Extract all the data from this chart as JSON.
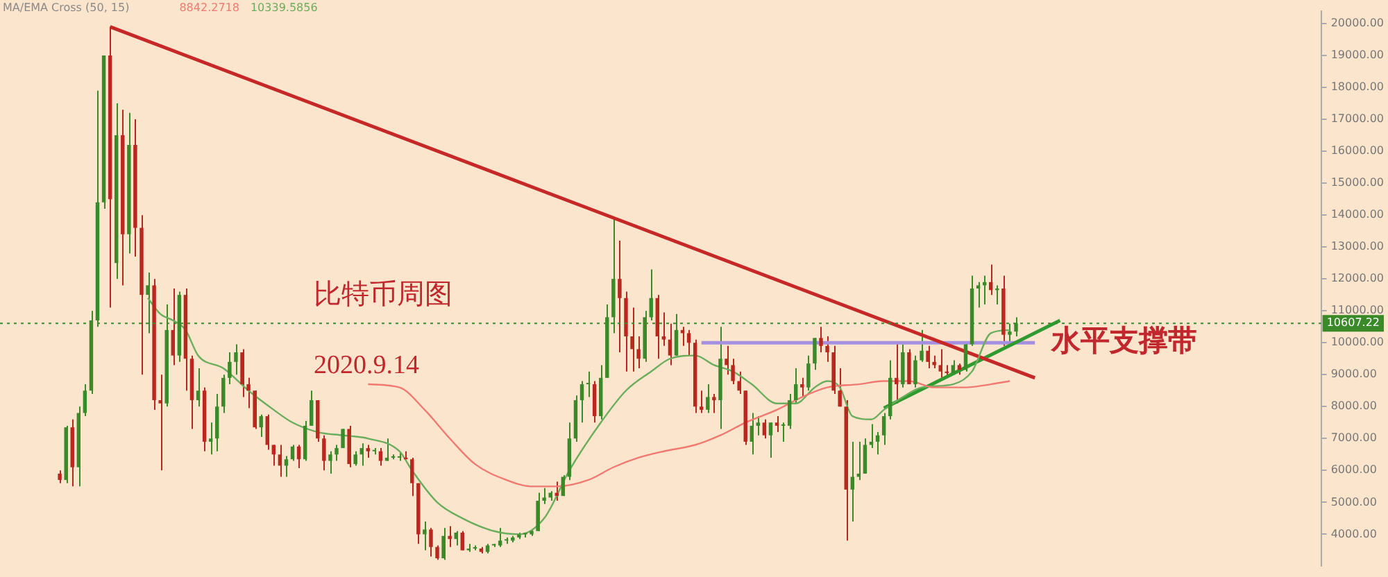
{
  "chart_data": {
    "type": "candlestick",
    "title": "比特币周图",
    "subtitle": "2020.9.14",
    "annotations": [
      "MA/EMA Cross (50, 15)",
      "8842.2718",
      "10339.5856"
    ],
    "categories": [
      null,
      null,
      null,
      null,
      null,
      null,
      null,
      null,
      null,
      null,
      null,
      null,
      null,
      null,
      null,
      null,
      null,
      null,
      null,
      null,
      null,
      null,
      null,
      null,
      null,
      null,
      null,
      null,
      null,
      null,
      null,
      null,
      null,
      null,
      null,
      null,
      null,
      null,
      null,
      null,
      null,
      null,
      null,
      null,
      null,
      null,
      null,
      null,
      null,
      null,
      null,
      null,
      null,
      null,
      null,
      null,
      null,
      null,
      null,
      null,
      null,
      null,
      null,
      null,
      null,
      null,
      null,
      null,
      null,
      null,
      null,
      null,
      null,
      null,
      null,
      null,
      null,
      null,
      null,
      null,
      null,
      null,
      null,
      null,
      null,
      null,
      null,
      null,
      null,
      null,
      null,
      null,
      null,
      null,
      null,
      null,
      null,
      null,
      null,
      null,
      null,
      null,
      null,
      null,
      null,
      null,
      null,
      null,
      null,
      null,
      null,
      null,
      null,
      null,
      null,
      null,
      null,
      null,
      null,
      null,
      null,
      null,
      null,
      null,
      null,
      null,
      null,
      null,
      null,
      null,
      null,
      null,
      null,
      null,
      null,
      null,
      null,
      null,
      null,
      null,
      null,
      null,
      null,
      null,
      null,
      null,
      null,
      null,
      null,
      null,
      null,
      null,
      null,
      null,
      null,
      null,
      null,
      null,
      null,
      null,
      null,
      null,
      null,
      null,
      null,
      null,
      null,
      null,
      null,
      null,
      null,
      null,
      null,
      null,
      null,
      null,
      null,
      null,
      null,
      null,
      null,
      null,
      null,
      null,
      null,
      null,
      null,
      null,
      null,
      null,
      null,
      null,
      null,
      null,
      null,
      null,
      null,
      null,
      null,
      null,
      null,
      null,
      null,
      null,
      null,
      null,
      null,
      null,
      null,
      null
    ],
    "ohlc": [
      null,
      null,
      null,
      null,
      null,
      null,
      null,
      null,
      null,
      [
        5900,
        6000,
        5600,
        5700
      ],
      [
        5700,
        7400,
        5600,
        7350
      ],
      [
        7350,
        7600,
        5500,
        6100
      ],
      [
        6100,
        8000,
        5500,
        7800
      ],
      [
        7800,
        8700,
        7700,
        8500
      ],
      [
        8500,
        11000,
        8400,
        10700
      ],
      [
        10700,
        17900,
        10500,
        14400
      ],
      [
        14400,
        19000,
        14200,
        19000
      ],
      [
        19000,
        19900,
        11100,
        14500
      ],
      [
        12500,
        17500,
        12000,
        16500
      ],
      [
        16500,
        17300,
        11800,
        13400
      ],
      [
        13400,
        17200,
        12800,
        16200
      ],
      [
        16200,
        17000,
        12700,
        13600
      ],
      [
        13600,
        14000,
        9000,
        11500
      ],
      [
        11500,
        12200,
        10300,
        11800
      ],
      [
        11800,
        12000,
        7900,
        8200
      ],
      [
        8200,
        9000,
        6000,
        8100
      ],
      [
        8100,
        11200,
        8000,
        10400
      ],
      [
        10400,
        11700,
        9300,
        9600
      ],
      [
        9600,
        11600,
        9400,
        11500
      ],
      [
        11500,
        11700,
        8500,
        9500
      ],
      [
        9500,
        9600,
        7300,
        8200
      ],
      [
        8200,
        9200,
        8000,
        8500
      ],
      [
        8500,
        8600,
        6600,
        6900
      ],
      [
        6900,
        7500,
        6500,
        7000
      ],
      [
        7000,
        8400,
        6600,
        8000
      ],
      [
        8000,
        9000,
        7800,
        8900
      ],
      [
        8900,
        9700,
        8700,
        9400
      ],
      [
        9400,
        9950,
        9000,
        9700
      ],
      [
        9700,
        9800,
        8300,
        8700
      ],
      [
        8700,
        8900,
        7950,
        8500
      ],
      [
        8500,
        8500,
        7300,
        7350
      ],
      [
        7350,
        7750,
        7050,
        7700
      ],
      [
        7700,
        7750,
        6650,
        6800
      ],
      [
        6800,
        6800,
        6150,
        6500
      ],
      [
        6500,
        6800,
        5800,
        6150
      ],
      [
        6150,
        6450,
        5800,
        6350
      ],
      [
        6350,
        6800,
        6300,
        6750
      ],
      [
        6750,
        6800,
        6070,
        6350
      ],
      [
        6350,
        7550,
        6300,
        7400
      ],
      [
        7400,
        8500,
        7400,
        8200
      ],
      [
        8200,
        8200,
        6900,
        7000
      ],
      [
        7000,
        7100,
        6000,
        6300
      ],
      [
        6300,
        6600,
        5900,
        6500
      ],
      [
        6500,
        6800,
        6300,
        6700
      ],
      [
        6700,
        7300,
        6700,
        7300
      ],
      [
        7300,
        7400,
        6100,
        6200
      ],
      [
        6200,
        6600,
        6150,
        6500
      ],
      [
        6500,
        6850,
        6150,
        6700
      ],
      [
        6700,
        6800,
        6400,
        6600
      ],
      [
        6600,
        6700,
        6500,
        6600
      ],
      [
        6600,
        6700,
        6150,
        6300
      ],
      [
        6300,
        7000,
        6300,
        6400
      ],
      [
        6400,
        6500,
        6350,
        6400
      ],
      [
        6400,
        6550,
        6300,
        6400
      ],
      [
        6400,
        6600,
        6350,
        6350
      ],
      [
        6350,
        6400,
        5200,
        5600
      ],
      [
        5600,
        5600,
        3700,
        4000
      ],
      [
        4000,
        4400,
        3500,
        4150
      ],
      [
        4150,
        4200,
        3300,
        3600
      ],
      [
        3600,
        3650,
        3200,
        3250
      ],
      [
        3250,
        4200,
        3200,
        3950
      ],
      [
        3950,
        4250,
        3600,
        3850
      ],
      [
        3850,
        4100,
        3650,
        4050
      ],
      [
        4050,
        4100,
        3500,
        3500
      ],
      [
        3500,
        3700,
        3450,
        3550
      ],
      [
        3550,
        3650,
        3500,
        3550
      ],
      [
        3550,
        3600,
        3400,
        3450
      ],
      [
        3450,
        3700,
        3400,
        3650
      ],
      [
        3650,
        3700,
        3600,
        3650
      ],
      [
        3650,
        4200,
        3600,
        3800
      ],
      [
        3800,
        3900,
        3700,
        3800
      ],
      [
        3800,
        3950,
        3750,
        3900
      ],
      [
        3900,
        4050,
        3850,
        4000
      ],
      [
        4000,
        4050,
        3900,
        4000
      ],
      [
        4000,
        4150,
        3950,
        4100
      ],
      [
        4100,
        5300,
        4100,
        5050
      ],
      [
        5050,
        5450,
        4950,
        5150
      ],
      [
        5150,
        5350,
        5050,
        5300
      ],
      [
        5300,
        5650,
        5050,
        5200
      ],
      [
        5200,
        5850,
        5200,
        5800
      ],
      [
        5800,
        7500,
        5700,
        7000
      ],
      [
        7000,
        8350,
        6900,
        8200
      ],
      [
        8200,
        8800,
        7500,
        8700
      ],
      [
        8700,
        9100,
        8300,
        8700
      ],
      [
        8700,
        8800,
        7500,
        7700
      ],
      [
        7700,
        9300,
        7600,
        8900
      ],
      [
        8900,
        11200,
        8900,
        10800
      ],
      [
        10800,
        13900,
        10300,
        12000
      ],
      [
        12000,
        13200,
        9700,
        11400
      ],
      [
        11400,
        11600,
        9100,
        10200
      ],
      [
        10200,
        11100,
        9100,
        9800
      ],
      [
        9800,
        10200,
        9200,
        9500
      ],
      [
        9500,
        11000,
        9400,
        10800
      ],
      [
        10800,
        12300,
        10700,
        11400
      ],
      [
        11400,
        11500,
        9500,
        10200
      ],
      [
        10200,
        10950,
        9900,
        10100
      ],
      [
        10100,
        10600,
        9300,
        9600
      ],
      [
        9600,
        10900,
        9600,
        10400
      ],
      [
        10400,
        10500,
        9900,
        10300
      ],
      [
        10300,
        10400,
        9600,
        10000
      ],
      [
        10000,
        10100,
        7800,
        8000
      ],
      [
        8000,
        8500,
        7800,
        7900
      ],
      [
        7900,
        8700,
        7800,
        8300
      ],
      [
        8300,
        8400,
        7800,
        8200
      ],
      [
        8200,
        10500,
        7300,
        9500
      ],
      [
        9500,
        9900,
        9000,
        9300
      ],
      [
        9300,
        9500,
        8700,
        8800
      ],
      [
        8800,
        9100,
        8400,
        8500
      ],
      [
        8500,
        8500,
        6800,
        6900
      ],
      [
        6900,
        7800,
        6500,
        7400
      ],
      [
        7400,
        7700,
        7100,
        7500
      ],
      [
        7500,
        7600,
        7000,
        7100
      ],
      [
        7100,
        7500,
        6400,
        7500
      ],
      [
        7500,
        7700,
        7200,
        7400
      ],
      [
        7400,
        7500,
        6900,
        7400
      ],
      [
        7400,
        8400,
        7300,
        8200
      ],
      [
        8200,
        9200,
        8100,
        8700
      ],
      [
        8700,
        8900,
        8300,
        8600
      ],
      [
        8600,
        9600,
        8500,
        9350
      ],
      [
        9350,
        10150,
        9150,
        10150
      ],
      [
        10150,
        10500,
        9700,
        9900
      ],
      [
        9900,
        10200,
        9400,
        9700
      ],
      [
        9700,
        9900,
        8400,
        8500
      ],
      [
        8500,
        9200,
        8000,
        8000
      ],
      [
        8000,
        8200,
        3800,
        5400
      ],
      [
        5400,
        6900,
        4400,
        5800
      ],
      [
        5800,
        6900,
        5700,
        5900
      ],
      [
        5900,
        7000,
        5900,
        6800
      ],
      [
        6800,
        7450,
        6700,
        6900
      ],
      [
        6900,
        7200,
        6500,
        7100
      ],
      [
        7100,
        7800,
        6800,
        7700
      ],
      [
        7700,
        9450,
        7600,
        8900
      ],
      [
        8900,
        10000,
        8100,
        8700
      ],
      [
        8700,
        9950,
        8600,
        9700
      ],
      [
        9700,
        9800,
        8700,
        8700
      ],
      [
        8700,
        9600,
        8600,
        9450
      ],
      [
        9450,
        10400,
        9400,
        9750
      ],
      [
        9750,
        9900,
        9200,
        9400
      ],
      [
        9400,
        9600,
        9200,
        9300
      ],
      [
        9300,
        9800,
        8900,
        9100
      ],
      [
        9100,
        9300,
        8900,
        9050
      ],
      [
        9050,
        9450,
        9000,
        9300
      ],
      [
        9300,
        9350,
        9000,
        9150
      ],
      [
        9150,
        10000,
        9100,
        9950
      ],
      [
        9950,
        12100,
        9900,
        11700
      ],
      [
        11700,
        11900,
        11100,
        11800
      ],
      [
        11800,
        12100,
        11200,
        11900
      ],
      [
        11900,
        12450,
        11500,
        11650
      ],
      [
        11650,
        11800,
        11200,
        11700
      ],
      [
        11700,
        12100,
        9900,
        10250
      ],
      [
        10250,
        10600,
        9900,
        10350
      ],
      [
        10350,
        10800,
        10200,
        10607.22
      ],
      null,
      null,
      null,
      null,
      null,
      null,
      null,
      null,
      null,
      null,
      null,
      null,
      null,
      null,
      null,
      null,
      null,
      null,
      null,
      null,
      null,
      null,
      null,
      null,
      null,
      null,
      null,
      null,
      null,
      null,
      null,
      null,
      null,
      null,
      null,
      null,
      null,
      null,
      null,
      null,
      null,
      null,
      null,
      null,
      null,
      null,
      null,
      null
    ],
    "ylim": [
      3000,
      20400
    ],
    "yticks": [
      {
        "value": 4000,
        "label": "4000.00"
      },
      {
        "value": 5000,
        "label": "5000.00"
      },
      {
        "value": 6000,
        "label": "6000.00"
      },
      {
        "value": 7000,
        "label": "7000.00"
      },
      {
        "value": 8000,
        "label": "8000.00"
      },
      {
        "value": 9000,
        "label": "9000.00"
      },
      {
        "value": 10000,
        "label": "10000.00"
      },
      {
        "value": 11000,
        "label": "11000.00"
      },
      {
        "value": 12000,
        "label": "12000.00"
      },
      {
        "value": 13000,
        "label": "13000.00"
      },
      {
        "value": 14000,
        "label": "14000.00"
      },
      {
        "value": 15000,
        "label": "15000.00"
      },
      {
        "value": 16000,
        "label": "16000.00"
      },
      {
        "value": 17000,
        "label": "17000.00"
      },
      {
        "value": 18000,
        "label": "18000.00"
      },
      {
        "value": 19000,
        "label": "19000.00"
      },
      {
        "value": 20000,
        "label": "20000.00"
      }
    ],
    "ref_lines": [
      {
        "axis": "y",
        "value": 10607.22,
        "label": "10607.22",
        "color": "#3a8a2a",
        "line_style": "dotted"
      }
    ],
    "series": [
      {
        "type": "line",
        "color": "#f07a72",
        "values": [
          null,
          null,
          null,
          null,
          null,
          null,
          null,
          null,
          null,
          null,
          null,
          null,
          null,
          null,
          null,
          null,
          null,
          null,
          null,
          null,
          null,
          null,
          null,
          null,
          null,
          null,
          null,
          null,
          null,
          null,
          null,
          null,
          null,
          null,
          null,
          null,
          null,
          null,
          null,
          null,
          null,
          null,
          null,
          null,
          null,
          null,
          null,
          null,
          null,
          null,
          null,
          null,
          null,
          null,
          null,
          null,
          null,
          null,
          8700,
          null,
          null,
          null,
          null,
          8600,
          null,
          null,
          null,
          7900,
          null,
          null,
          null,
          7000,
          null,
          null,
          null,
          6200,
          null,
          null,
          null,
          null,
          5700,
          null,
          null,
          null,
          5500,
          null,
          null,
          null,
          5500,
          null,
          null,
          null,
          null,
          5700,
          null,
          null,
          null,
          6100,
          null,
          null,
          null,
          6400,
          null,
          null,
          null,
          6600,
          null,
          null,
          null,
          null,
          6800,
          null,
          null,
          null,
          7100,
          null,
          null,
          null,
          7500,
          null,
          null,
          null,
          null,
          7900,
          null,
          null,
          null,
          8300,
          null,
          null,
          null,
          8600,
          null,
          null,
          null,
          null,
          8700,
          null,
          null,
          null,
          8800,
          null,
          null,
          null,
          8800,
          null,
          null,
          null,
          8600,
          null,
          null,
          null,
          null,
          8600,
          null,
          null,
          null,
          8700,
          null,
          null,
          8800,
          null,
          null,
          null,
          null,
          null,
          null,
          null,
          null,
          null,
          null,
          null,
          null,
          null,
          null,
          null,
          null,
          null,
          null,
          null,
          null,
          null,
          null,
          null,
          null,
          null,
          null,
          null,
          null,
          null,
          null,
          null,
          null,
          null,
          null,
          null,
          null,
          null,
          null,
          null,
          null,
          null,
          null,
          null,
          null,
          null,
          null,
          null,
          null,
          null
        ]
      },
      {
        "type": "line",
        "color": "#6aad5c",
        "values": [
          null,
          null,
          null,
          null,
          null,
          null,
          null,
          null,
          null,
          null,
          null,
          null,
          null,
          null,
          null,
          null,
          null,
          null,
          null,
          null,
          null,
          null,
          null,
          11400,
          null,
          10900,
          null,
          10700,
          null,
          10400,
          null,
          9600,
          null,
          null,
          null,
          9200,
          null,
          null,
          null,
          8500,
          null,
          null,
          null,
          7900,
          null,
          null,
          7500,
          null,
          null,
          null,
          7200,
          null,
          null,
          null,
          7100,
          null,
          null,
          null,
          7000,
          null,
          null,
          null,
          null,
          6600,
          null,
          6000,
          null,
          null,
          null,
          5000,
          null,
          null,
          null,
          4500,
          null,
          null,
          null,
          null,
          4100,
          null,
          null,
          null,
          4000,
          null,
          null,
          null,
          4500,
          null,
          null,
          null,
          6000,
          null,
          null,
          null,
          null,
          7500,
          null,
          null,
          null,
          8500,
          null,
          null,
          null,
          9100,
          null,
          null,
          9500,
          null,
          null,
          null,
          9600,
          null,
          null,
          9300,
          null,
          null,
          9100,
          null,
          null,
          8700,
          null,
          null,
          null,
          8100,
          null,
          null,
          8100,
          null,
          null,
          8600,
          null,
          8800,
          null,
          8600,
          null,
          7700,
          null,
          null,
          7600,
          null,
          7900,
          null,
          null,
          8300,
          null,
          null,
          8600,
          null,
          null,
          null,
          null,
          8700,
          null,
          null,
          9100,
          null,
          null,
          10300,
          null,
          null,
          10400,
          null,
          null,
          null,
          null,
          null,
          null,
          null,
          null,
          null,
          null,
          null,
          null,
          null,
          null,
          null,
          null,
          null,
          null,
          null,
          null,
          null,
          null,
          null,
          null,
          null,
          null,
          null,
          null,
          null,
          null,
          null,
          null,
          null,
          null,
          null,
          null,
          null,
          null,
          null,
          null,
          null,
          null,
          null,
          null,
          null,
          null,
          null,
          null,
          null
        ]
      },
      {
        "type": "line",
        "color": "#c62828",
        "values": [
          null,
          null,
          null,
          null,
          null,
          null,
          null,
          null,
          null,
          null,
          null,
          null,
          null,
          null,
          null,
          null,
          null,
          19900,
          null,
          null,
          null,
          null,
          null,
          null,
          null,
          null,
          null,
          null,
          null,
          null,
          null,
          null,
          null,
          null,
          null,
          null,
          null,
          null,
          null,
          null,
          null,
          null,
          null,
          null,
          null,
          null,
          null,
          null,
          null,
          null,
          null,
          null,
          null,
          null,
          null,
          null,
          null,
          null,
          null,
          null,
          null,
          null,
          null,
          null,
          null,
          null,
          null,
          null,
          null,
          null,
          null,
          null,
          null,
          null,
          null,
          null,
          null,
          null,
          null,
          null,
          null,
          null,
          null,
          null,
          null,
          null,
          null,
          null,
          null,
          null,
          null,
          null,
          null,
          null,
          null,
          null,
          null,
          null,
          null,
          null,
          null,
          null,
          null,
          null,
          null,
          null,
          null,
          null,
          null,
          null,
          null,
          null,
          null,
          null,
          null,
          null,
          null,
          null,
          null,
          null,
          null,
          null,
          null,
          null,
          null,
          null,
          null,
          null,
          null,
          null,
          null,
          null,
          null,
          null,
          null,
          null,
          null,
          null,
          null,
          null,
          null,
          null,
          null,
          null,
          null,
          null,
          null,
          null,
          null,
          null,
          null,
          null,
          null,
          null,
          null,
          null,
          null,
          null,
          null,
          null,
          null,
          null,
          null,
          null,
          8900,
          null,
          null,
          null,
          null,
          null,
          null,
          null,
          null,
          null,
          null,
          null,
          null,
          null,
          null,
          null,
          null,
          null,
          null,
          null,
          null,
          null,
          null,
          null,
          null,
          null,
          null,
          null,
          null,
          null,
          null,
          null,
          null,
          null,
          null,
          null,
          null,
          null,
          null,
          null,
          null,
          null,
          null,
          null,
          null,
          null
        ]
      },
      {
        "type": "line",
        "color": "#2f9a2f",
        "values": [
          null,
          null,
          null,
          null,
          null,
          null,
          null,
          null,
          null,
          null,
          null,
          null,
          null,
          null,
          null,
          null,
          null,
          null,
          null,
          null,
          null,
          null,
          null,
          null,
          null,
          null,
          null,
          null,
          null,
          null,
          null,
          null,
          null,
          null,
          null,
          null,
          null,
          null,
          null,
          null,
          null,
          null,
          null,
          null,
          null,
          null,
          null,
          null,
          null,
          null,
          null,
          null,
          null,
          null,
          null,
          null,
          null,
          null,
          null,
          null,
          null,
          null,
          null,
          null,
          null,
          null,
          null,
          null,
          null,
          null,
          null,
          null,
          null,
          null,
          null,
          null,
          null,
          null,
          null,
          null,
          null,
          null,
          null,
          null,
          null,
          null,
          null,
          null,
          null,
          null,
          null,
          null,
          null,
          null,
          null,
          null,
          null,
          null,
          null,
          null,
          null,
          null,
          null,
          null,
          null,
          null,
          null,
          null,
          null,
          null,
          null,
          null,
          null,
          null,
          null,
          null,
          null,
          null,
          null,
          null,
          null,
          null,
          null,
          null,
          null,
          null,
          null,
          null,
          null,
          null,
          null,
          null,
          null,
          null,
          null,
          null,
          null,
          null,
          null,
          null,
          7950,
          null,
          null,
          null,
          null,
          null,
          null,
          null,
          null,
          null,
          null,
          null,
          null,
          null,
          null,
          null,
          null,
          null,
          null,
          null,
          null,
          null,
          null,
          null,
          null,
          null,
          null,
          null,
          10700,
          null,
          null,
          null,
          null,
          null,
          null,
          null,
          null,
          null,
          null,
          null,
          null,
          null,
          null,
          null,
          null,
          null,
          null,
          null,
          null,
          null,
          null,
          null,
          null,
          null,
          null,
          null,
          null,
          null,
          null,
          null,
          null,
          null,
          null,
          null,
          null,
          null,
          null,
          null,
          null,
          null
        ]
      },
      {
        "type": "line",
        "name": "水平支撑带",
        "color": "#a58fe0",
        "values": [
          null,
          null,
          null,
          null,
          null,
          null,
          null,
          null,
          null,
          null,
          null,
          null,
          null,
          null,
          null,
          null,
          null,
          null,
          null,
          null,
          null,
          null,
          null,
          null,
          null,
          null,
          null,
          null,
          null,
          null,
          null,
          null,
          null,
          null,
          null,
          null,
          null,
          null,
          null,
          null,
          null,
          null,
          null,
          null,
          null,
          null,
          null,
          null,
          null,
          null,
          null,
          null,
          null,
          null,
          null,
          null,
          null,
          null,
          null,
          null,
          null,
          null,
          null,
          null,
          null,
          null,
          null,
          null,
          null,
          null,
          null,
          null,
          null,
          null,
          null,
          null,
          null,
          null,
          null,
          null,
          null,
          null,
          null,
          null,
          null,
          null,
          null,
          null,
          null,
          null,
          null,
          null,
          null,
          null,
          null,
          null,
          null,
          null,
          null,
          null,
          null,
          null,
          null,
          null,
          null,
          null,
          null,
          null,
          null,
          null,
          null,
          10000,
          null,
          null,
          null,
          null,
          null,
          null,
          null,
          null,
          null,
          null,
          null,
          null,
          null,
          null,
          null,
          null,
          null,
          null,
          null,
          null,
          null,
          null,
          null,
          null,
          null,
          null,
          null,
          null,
          null,
          null,
          null,
          null,
          null,
          null,
          null,
          null,
          null,
          null,
          null,
          null,
          null,
          null,
          null,
          null,
          null,
          null,
          null,
          null,
          null,
          null,
          null,
          null,
          10000,
          null,
          null,
          null,
          null,
          null,
          null,
          null,
          null,
          null,
          null,
          null,
          null,
          null,
          null,
          null,
          null,
          null,
          null,
          null,
          null,
          null,
          null,
          null,
          null,
          null,
          null,
          null,
          null,
          null,
          null,
          null,
          null,
          null,
          null,
          null,
          null,
          null,
          null,
          null,
          null,
          null,
          null,
          null,
          null,
          null
        ]
      }
    ]
  }
}
